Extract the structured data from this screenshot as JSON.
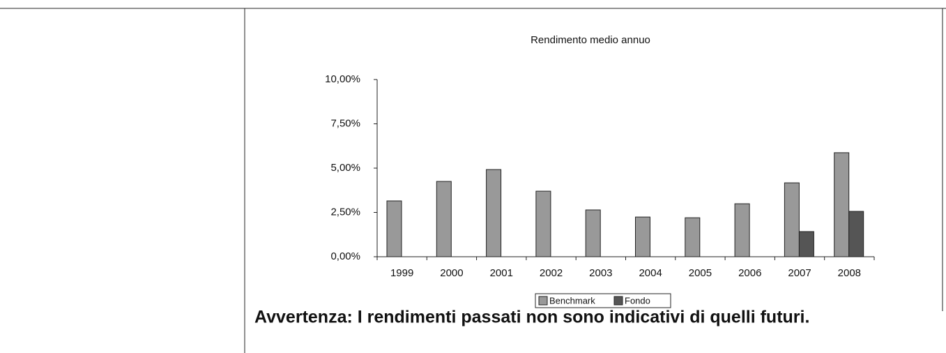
{
  "chart_data": {
    "type": "bar",
    "title": "Rendimento medio annuo",
    "categories": [
      "1999",
      "2000",
      "2001",
      "2002",
      "2003",
      "2004",
      "2005",
      "2006",
      "2007",
      "2008"
    ],
    "series": [
      {
        "name": "Benchmark",
        "color": "#999999",
        "values": [
          3.15,
          4.25,
          4.92,
          3.7,
          2.64,
          2.24,
          2.2,
          2.99,
          4.17,
          5.87
        ]
      },
      {
        "name": "Fondo",
        "color": "#555555",
        "values": [
          null,
          null,
          null,
          null,
          null,
          null,
          null,
          null,
          1.42,
          2.56
        ]
      }
    ],
    "ylim": [
      0,
      10
    ],
    "yticks": [
      {
        "value": 0,
        "label": "0,00%"
      },
      {
        "value": 2.5,
        "label": "2,50%"
      },
      {
        "value": 5,
        "label": "5,00%"
      },
      {
        "value": 7.5,
        "label": "7,50%"
      },
      {
        "value": 10,
        "label": "10,00%"
      }
    ],
    "grid": false
  },
  "note": "Avvertenza: I rendimenti passati non sono indicativi di quelli futuri."
}
